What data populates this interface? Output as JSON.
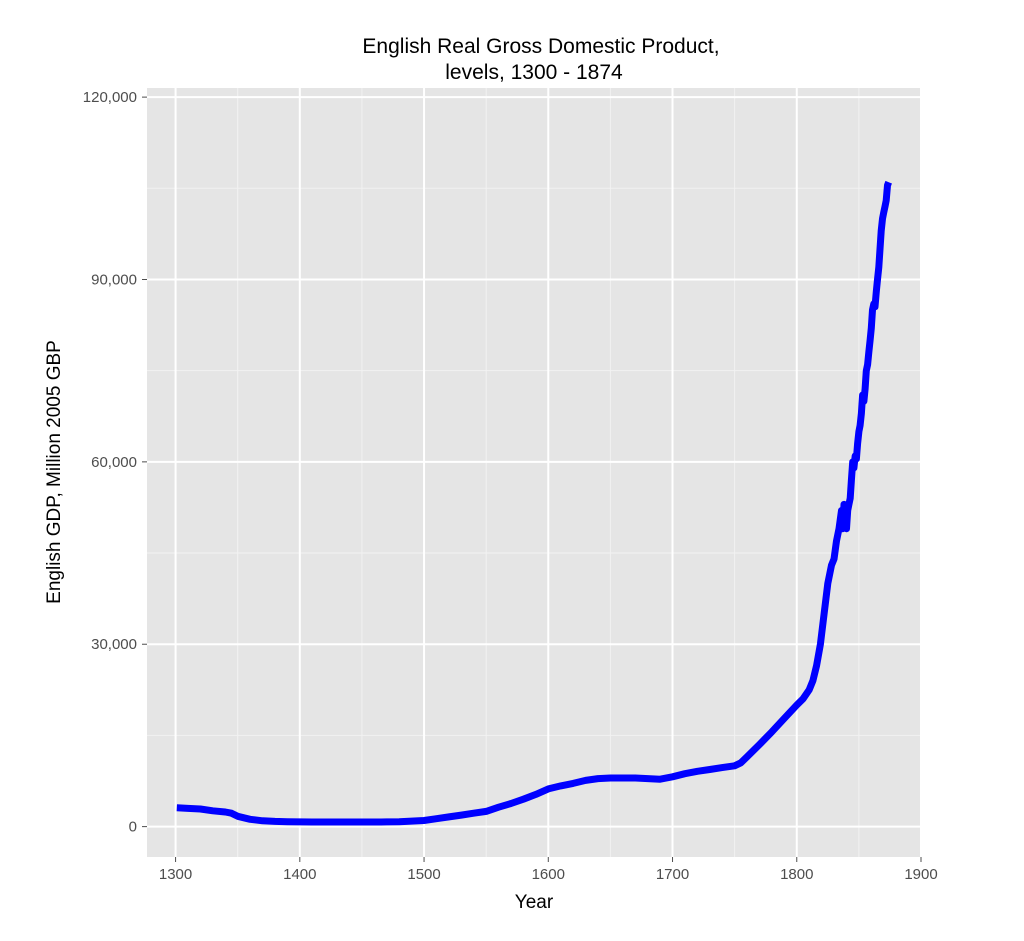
{
  "chart_data": {
    "type": "line",
    "title": [
      "English Real Gross Domestic Product,",
      "levels, 1300 - 1874"
    ],
    "xlabel": "Year",
    "ylabel": "English GDP, Million 2005 GBP",
    "xlim": [
      1277,
      1900
    ],
    "ylim": [
      -5000,
      121500
    ],
    "x_ticks": [
      1300,
      1400,
      1500,
      1600,
      1700,
      1800,
      1900
    ],
    "x_tick_labels": [
      "1300",
      "1400",
      "1500",
      "1600",
      "1700",
      "1800",
      "1900"
    ],
    "y_ticks": [
      0,
      30000,
      60000,
      90000,
      120000
    ],
    "y_tick_labels": [
      "0",
      "30,000",
      "60,000",
      "90,000",
      "120,000"
    ],
    "grid": true,
    "colors": {
      "panel": "#e5e5e5",
      "grid_major": "#ffffff",
      "grid_minor": "#f2f2f2",
      "line": "#0000ff",
      "tick": "#4d4d4d"
    },
    "series": [
      {
        "x": [
          1301,
          1310,
          1320,
          1330,
          1340,
          1345,
          1350,
          1360,
          1370,
          1380,
          1390,
          1400,
          1410,
          1420,
          1430,
          1440,
          1450,
          1460,
          1470,
          1480,
          1490,
          1500,
          1510,
          1520,
          1530,
          1540,
          1550,
          1560,
          1570,
          1580,
          1590,
          1600,
          1610,
          1620,
          1630,
          1640,
          1650,
          1660,
          1670,
          1680,
          1690,
          1700,
          1710,
          1720,
          1730,
          1740,
          1750,
          1755,
          1760,
          1770,
          1780,
          1790,
          1800,
          1805,
          1810,
          1813,
          1816,
          1819,
          1822,
          1825,
          1828,
          1830,
          1832,
          1834,
          1836,
          1837,
          1838,
          1839,
          1840,
          1841,
          1842,
          1843,
          1844,
          1845,
          1846,
          1847,
          1848,
          1849,
          1850,
          1851,
          1852,
          1853,
          1854,
          1855,
          1856,
          1857,
          1858,
          1859,
          1860,
          1861,
          1862,
          1863,
          1864,
          1865,
          1866,
          1867,
          1868,
          1869,
          1870,
          1871,
          1872,
          1873,
          1874
        ],
        "y": [
          3100,
          3000,
          2900,
          2600,
          2400,
          2200,
          1700,
          1200,
          950,
          850,
          800,
          780,
          760,
          760,
          760,
          760,
          760,
          760,
          770,
          800,
          900,
          1000,
          1300,
          1600,
          1900,
          2200,
          2500,
          3200,
          3800,
          4500,
          5300,
          6200,
          6700,
          7100,
          7600,
          7900,
          8000,
          8000,
          8000,
          7900,
          7800,
          8200,
          8700,
          9100,
          9400,
          9700,
          10000,
          10500,
          11500,
          13500,
          15600,
          17800,
          20000,
          21000,
          22500,
          24000,
          26500,
          30000,
          35000,
          40000,
          43000,
          44000,
          47000,
          49000,
          52000,
          49000,
          53000,
          50000,
          49000,
          52000,
          53000,
          54000,
          57000,
          60000,
          59000,
          61000,
          60500,
          63000,
          65000,
          66000,
          68000,
          71000,
          70000,
          72000,
          75000,
          76000,
          78000,
          80000,
          82000,
          85000,
          86000,
          85500,
          88000,
          90000,
          92000,
          95000,
          98000,
          100000,
          101000,
          102000,
          103000,
          105500,
          106000
        ]
      }
    ]
  }
}
